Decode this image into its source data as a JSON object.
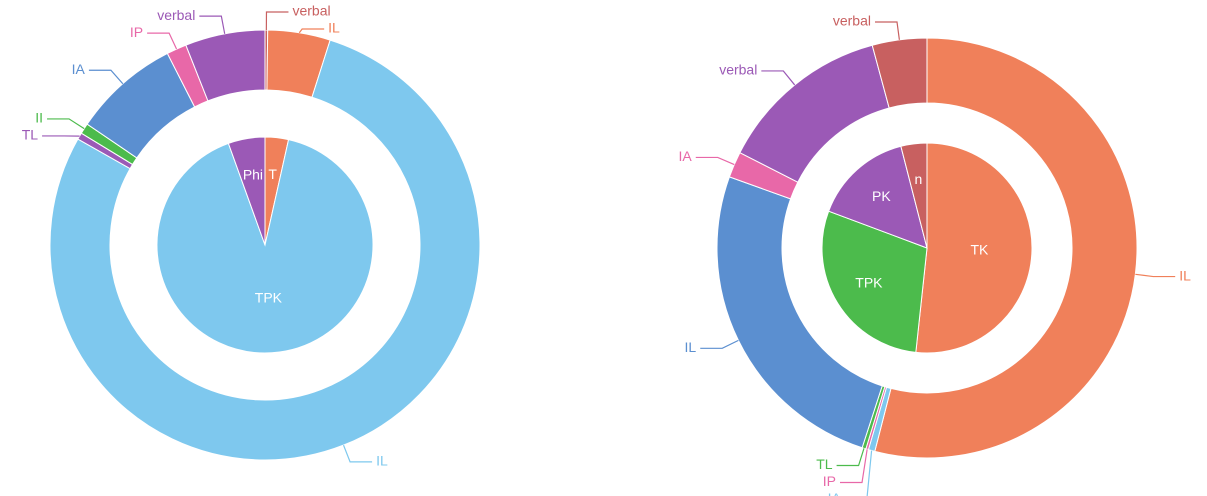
{
  "chart_data": [
    {
      "type": "pie",
      "rings": [
        {
          "categories": [
            "T",
            "TPK",
            "Phi"
          ],
          "values": [
            3.5,
            91,
            5.5
          ],
          "colors": [
            "#f0805a",
            "#7ec8ee",
            "#9b59b6"
          ]
        },
        {
          "categories": [
            "verbal",
            "IL",
            "IL",
            "TL",
            "II",
            "IA",
            "IP",
            "verbal"
          ],
          "values": [
            0.2,
            4.7,
            78.3,
            0.5,
            0.8,
            8,
            1.5,
            6
          ],
          "colors": [
            "#c86060",
            "#f0805a",
            "#7ec8ee",
            "#9b59b6",
            "#4cbb4c",
            "#5b8fd0",
            "#e868a8",
            "#9b59b6"
          ]
        }
      ]
    },
    {
      "type": "pie",
      "rings": [
        {
          "categories": [
            "TK",
            "TPK",
            "PK",
            "n"
          ],
          "values": [
            51.7,
            29,
            15.3,
            4
          ],
          "colors": [
            "#f0805a",
            "#4cbb4c",
            "#9b59b6",
            "#c86060"
          ]
        },
        {
          "categories": [
            "IL",
            "IA",
            "IP",
            "TL",
            "IL",
            "IA",
            "verbal",
            "verbal"
          ],
          "values": [
            54,
            0.5,
            0.2,
            0.3,
            25.5,
            2,
            13.3,
            4.2
          ],
          "colors": [
            "#f0805a",
            "#7ec8ee",
            "#e868a8",
            "#4cbb4c",
            "#5b8fd0",
            "#e868a8",
            "#9b59b6",
            "#c86060"
          ]
        }
      ]
    }
  ]
}
